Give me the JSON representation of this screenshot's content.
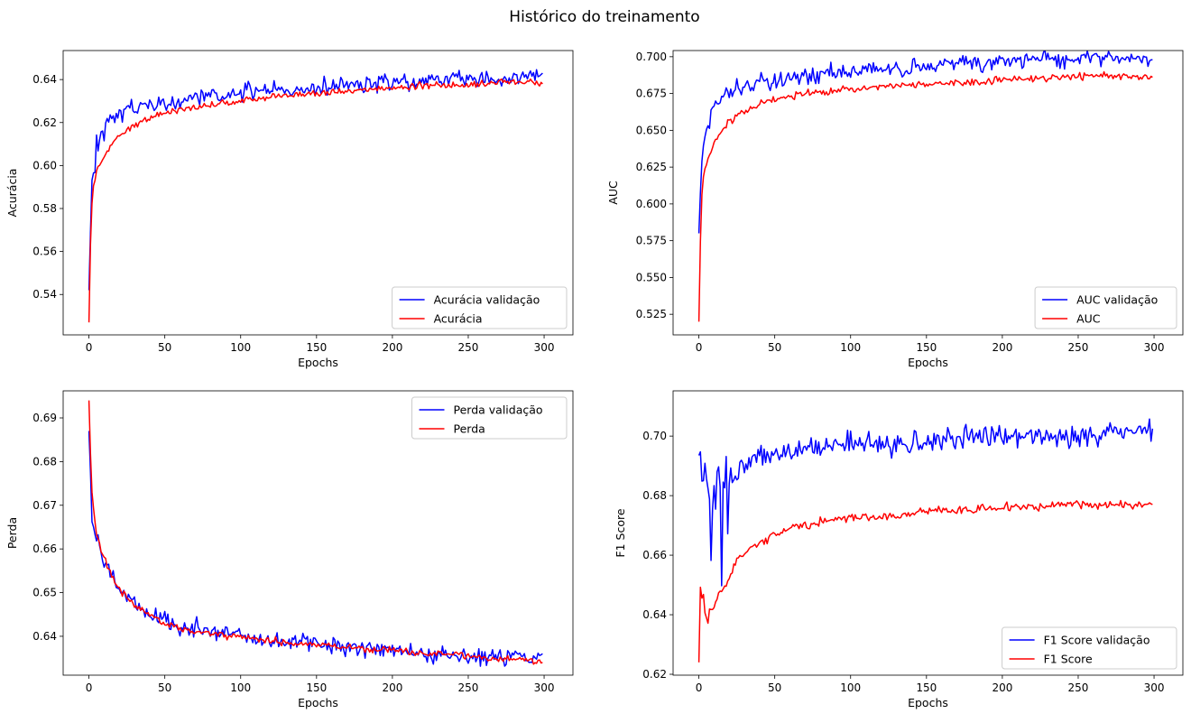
{
  "figure": {
    "title": "Histórico do treinamento",
    "colors": {
      "validation": "#0000ff",
      "train": "#ff0000"
    }
  },
  "chart_data": [
    {
      "type": "line",
      "xlabel": "Epochs",
      "ylabel": "Acurácia",
      "xlim": [
        -17,
        319
      ],
      "ylim": [
        0.5212,
        0.6535
      ],
      "xticks": [
        0,
        50,
        100,
        150,
        200,
        250,
        300
      ],
      "yticks": [
        0.54,
        0.56,
        0.58,
        0.6,
        0.62,
        0.64
      ],
      "legend_position": "lower-right",
      "series": [
        {
          "name": "Acurácia validação",
          "color": "#0000ff",
          "x": [
            0,
            2,
            4,
            5,
            6,
            8,
            10,
            12,
            15,
            20,
            25,
            30,
            40,
            50,
            60,
            70,
            80,
            90,
            100,
            120,
            140,
            160,
            180,
            200,
            220,
            240,
            260,
            280,
            299
          ],
          "y": [
            0.542,
            0.592,
            0.598,
            0.61,
            0.607,
            0.618,
            0.615,
            0.619,
            0.621,
            0.624,
            0.626,
            0.627,
            0.628,
            0.629,
            0.63,
            0.632,
            0.633,
            0.633,
            0.634,
            0.635,
            0.636,
            0.637,
            0.638,
            0.638,
            0.639,
            0.64,
            0.641,
            0.641,
            0.643
          ]
        },
        {
          "name": "Acurácia",
          "color": "#ff0000",
          "x": [
            0,
            1,
            2,
            3,
            5,
            8,
            10,
            15,
            20,
            25,
            30,
            40,
            50,
            60,
            70,
            80,
            90,
            100,
            120,
            140,
            160,
            180,
            200,
            220,
            240,
            260,
            280,
            299
          ],
          "y": [
            0.527,
            0.565,
            0.582,
            0.59,
            0.597,
            0.601,
            0.604,
            0.61,
            0.614,
            0.617,
            0.619,
            0.622,
            0.624,
            0.626,
            0.627,
            0.628,
            0.629,
            0.63,
            0.632,
            0.633,
            0.634,
            0.635,
            0.636,
            0.637,
            0.637,
            0.638,
            0.639,
            0.638
          ]
        }
      ]
    },
    {
      "type": "line",
      "xlabel": "Epochs",
      "ylabel": "AUC",
      "xlim": [
        -17,
        319
      ],
      "ylim": [
        0.511,
        0.7042
      ],
      "xticks": [
        0,
        50,
        100,
        150,
        200,
        250,
        300
      ],
      "yticks": [
        0.525,
        0.55,
        0.575,
        0.6,
        0.625,
        0.65,
        0.675,
        0.7
      ],
      "legend_position": "lower-right",
      "series": [
        {
          "name": "AUC validação",
          "color": "#0000ff",
          "x": [
            0,
            2,
            4,
            6,
            8,
            10,
            12,
            15,
            20,
            25,
            30,
            40,
            50,
            60,
            70,
            80,
            90,
            100,
            120,
            140,
            160,
            180,
            200,
            220,
            240,
            260,
            280,
            299
          ],
          "y": [
            0.58,
            0.63,
            0.645,
            0.652,
            0.658,
            0.664,
            0.669,
            0.671,
            0.674,
            0.677,
            0.679,
            0.681,
            0.683,
            0.685,
            0.686,
            0.687,
            0.689,
            0.69,
            0.691,
            0.692,
            0.694,
            0.695,
            0.697,
            0.698,
            0.698,
            0.699,
            0.699,
            0.698
          ]
        },
        {
          "name": "AUC",
          "color": "#ff0000",
          "x": [
            0,
            1,
            2,
            3,
            5,
            8,
            10,
            15,
            20,
            25,
            30,
            40,
            50,
            60,
            70,
            80,
            90,
            100,
            120,
            140,
            160,
            180,
            200,
            220,
            240,
            260,
            280,
            299
          ],
          "y": [
            0.52,
            0.575,
            0.605,
            0.618,
            0.628,
            0.636,
            0.641,
            0.65,
            0.656,
            0.66,
            0.663,
            0.668,
            0.671,
            0.673,
            0.675,
            0.676,
            0.677,
            0.678,
            0.68,
            0.681,
            0.682,
            0.683,
            0.684,
            0.685,
            0.686,
            0.687,
            0.687,
            0.686
          ]
        }
      ]
    },
    {
      "type": "line",
      "xlabel": "Epochs",
      "ylabel": "Perda",
      "xlim": [
        -17,
        319
      ],
      "ylim": [
        0.6311,
        0.6962
      ],
      "xticks": [
        0,
        50,
        100,
        150,
        200,
        250,
        300
      ],
      "yticks": [
        0.64,
        0.65,
        0.66,
        0.67,
        0.68,
        0.69
      ],
      "legend_position": "upper-right",
      "series": [
        {
          "name": "Perda validação",
          "color": "#0000ff",
          "x": [
            0,
            2,
            4,
            6,
            8,
            10,
            12,
            15,
            20,
            25,
            30,
            40,
            50,
            60,
            70,
            80,
            90,
            100,
            120,
            140,
            160,
            180,
            200,
            220,
            240,
            260,
            280,
            299
          ],
          "y": [
            0.687,
            0.666,
            0.664,
            0.661,
            0.659,
            0.657,
            0.656,
            0.654,
            0.651,
            0.649,
            0.648,
            0.645,
            0.644,
            0.642,
            0.642,
            0.641,
            0.641,
            0.64,
            0.639,
            0.639,
            0.638,
            0.637,
            0.637,
            0.636,
            0.636,
            0.635,
            0.635,
            0.636
          ]
        },
        {
          "name": "Perda",
          "color": "#ff0000",
          "x": [
            0,
            1,
            2,
            3,
            5,
            8,
            10,
            15,
            20,
            25,
            30,
            40,
            50,
            60,
            70,
            80,
            90,
            100,
            120,
            140,
            160,
            180,
            200,
            220,
            240,
            260,
            280,
            299
          ],
          "y": [
            0.694,
            0.681,
            0.673,
            0.669,
            0.664,
            0.66,
            0.658,
            0.654,
            0.651,
            0.649,
            0.647,
            0.645,
            0.643,
            0.642,
            0.641,
            0.641,
            0.64,
            0.64,
            0.639,
            0.638,
            0.638,
            0.637,
            0.637,
            0.636,
            0.636,
            0.635,
            0.635,
            0.634
          ]
        }
      ]
    },
    {
      "type": "line",
      "xlabel": "Epochs",
      "ylabel": "F1 Score",
      "xlim": [
        -17,
        319
      ],
      "ylim": [
        0.6197,
        0.7152
      ],
      "xticks": [
        0,
        50,
        100,
        150,
        200,
        250,
        300
      ],
      "yticks": [
        0.62,
        0.64,
        0.66,
        0.68,
        0.7
      ],
      "legend_position": "lower-right",
      "series": [
        {
          "name": "F1 Score validação",
          "color": "#0000ff",
          "x": [
            0,
            1,
            2,
            3,
            4,
            5,
            6,
            7,
            8,
            9,
            10,
            11,
            12,
            13,
            14,
            15,
            16,
            17,
            18,
            19,
            20,
            25,
            30,
            40,
            50,
            60,
            70,
            80,
            90,
            100,
            120,
            140,
            160,
            180,
            200,
            220,
            240,
            260,
            280,
            299
          ],
          "y": [
            0.6935,
            0.693,
            0.684,
            0.682,
            0.691,
            0.686,
            0.684,
            0.679,
            0.661,
            0.676,
            0.684,
            0.672,
            0.687,
            0.689,
            0.682,
            0.651,
            0.684,
            0.682,
            0.691,
            0.668,
            0.684,
            0.688,
            0.69,
            0.693,
            0.694,
            0.694,
            0.695,
            0.696,
            0.697,
            0.698,
            0.697,
            0.698,
            0.699,
            0.7,
            0.7,
            0.7,
            0.7,
            0.701,
            0.701,
            0.7025
          ]
        },
        {
          "name": "F1 Score",
          "color": "#ff0000",
          "x": [
            0,
            1,
            2,
            3,
            4,
            5,
            6,
            7,
            8,
            10,
            12,
            14,
            16,
            18,
            20,
            25,
            30,
            35,
            40,
            50,
            60,
            70,
            80,
            90,
            100,
            120,
            140,
            160,
            180,
            200,
            220,
            240,
            260,
            280,
            299
          ],
          "y": [
            0.624,
            0.648,
            0.646,
            0.646,
            0.64,
            0.639,
            0.637,
            0.642,
            0.641,
            0.643,
            0.645,
            0.648,
            0.649,
            0.65,
            0.653,
            0.658,
            0.661,
            0.663,
            0.664,
            0.667,
            0.669,
            0.67,
            0.671,
            0.672,
            0.673,
            0.673,
            0.674,
            0.675,
            0.675,
            0.676,
            0.676,
            0.677,
            0.677,
            0.677,
            0.677
          ]
        }
      ]
    }
  ]
}
